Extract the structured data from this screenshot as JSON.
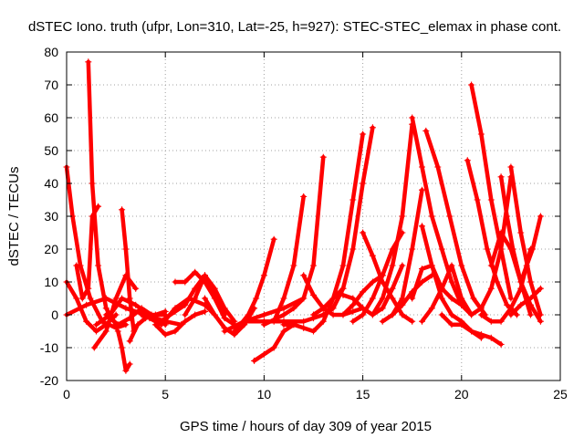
{
  "chart_data": {
    "type": "scatter",
    "title": "dSTEC Iono. truth (ufpr, Lon=310, Lat=-25, h=927): STEC-STEC_elemax in phase cont.",
    "xlabel": "GPS time / hours of day 309 of year 2015",
    "ylabel": "dSTEC  / TECUs",
    "xlim": [
      0,
      25
    ],
    "ylim": [
      -20,
      80
    ],
    "xticks": [
      0,
      5,
      10,
      15,
      20,
      25
    ],
    "xtick_labels": [
      "0",
      "5",
      "10",
      "15",
      "20",
      "25"
    ],
    "yticks": [
      -20,
      -10,
      0,
      10,
      20,
      30,
      40,
      50,
      60,
      70,
      80
    ],
    "ytick_labels": [
      "-20",
      "-10",
      "0",
      "10",
      "20",
      "30",
      "40",
      "50",
      "60",
      "70",
      "80"
    ],
    "grid": true,
    "marker": "plus",
    "color": "#ff0000",
    "series": [
      {
        "x": [
          0.0,
          0.3,
          0.7,
          1.2,
          1.8,
          2.5,
          3.0
        ],
        "y": [
          45,
          30,
          15,
          5,
          -2,
          -4,
          -3
        ]
      },
      {
        "x": [
          1.1,
          1.3,
          1.6,
          2.0,
          2.5
        ],
        "y": [
          77,
          40,
          15,
          2,
          -3
        ]
      },
      {
        "x": [
          0.5,
          0.8,
          1.1,
          1.3,
          1.6
        ],
        "y": [
          15,
          5,
          8,
          30,
          33
        ]
      },
      {
        "x": [
          0.0,
          0.5,
          1.0,
          1.5,
          2.0,
          2.5
        ],
        "y": [
          10,
          5,
          -2,
          -5,
          -3,
          0
        ]
      },
      {
        "x": [
          1.4,
          2.0,
          2.5,
          3.0,
          3.5
        ],
        "y": [
          -10,
          -5,
          5,
          12,
          8
        ]
      },
      {
        "x": [
          2.8,
          3.0,
          3.2,
          3.4
        ],
        "y": [
          32,
          20,
          5,
          -5
        ]
      },
      {
        "x": [
          2.6,
          2.8,
          3.0,
          3.2
        ],
        "y": [
          -5,
          -10,
          -17,
          -15
        ]
      },
      {
        "x": [
          3.2,
          3.6,
          4.0,
          4.5,
          5.0
        ],
        "y": [
          -8,
          -3,
          -1,
          0,
          1
        ]
      },
      {
        "x": [
          0.0,
          1.0,
          2.0,
          3.0,
          4.0,
          5.0,
          5.8
        ],
        "y": [
          0,
          3,
          5,
          2,
          0,
          -2,
          -3
        ]
      },
      {
        "x": [
          2.0,
          2.6,
          3.2,
          3.8,
          4.3,
          5.0
        ],
        "y": [
          0,
          -3,
          -1,
          2,
          0,
          -3
        ]
      },
      {
        "x": [
          1.5,
          2.2,
          2.8,
          3.5,
          4.2,
          5.0
        ],
        "y": [
          -3,
          0,
          5,
          3,
          0,
          0
        ]
      },
      {
        "x": [
          4.5,
          5.0,
          5.5,
          6.0,
          6.5,
          7.0
        ],
        "y": [
          -3,
          -6,
          -5,
          -2,
          0,
          1
        ]
      },
      {
        "x": [
          3.8,
          4.2,
          4.8,
          5.5,
          6.2,
          7.0,
          7.5
        ],
        "y": [
          0,
          -1,
          -3,
          2,
          5,
          3,
          0
        ]
      },
      {
        "x": [
          5.0,
          5.5,
          6.0,
          6.5,
          7.0,
          7.5,
          8.0
        ],
        "y": [
          -1,
          1,
          3,
          8,
          12,
          6,
          0
        ]
      },
      {
        "x": [
          5.5,
          6.0,
          6.5,
          7.0,
          7.5,
          8.0,
          8.5
        ],
        "y": [
          10,
          10,
          13,
          10,
          5,
          -1,
          -3
        ]
      },
      {
        "x": [
          6.0,
          6.5,
          7.0,
          7.5,
          8.0,
          8.5
        ],
        "y": [
          0,
          5,
          12,
          8,
          2,
          -2
        ]
      },
      {
        "x": [
          7.0,
          7.5,
          8.0,
          8.5,
          9.0,
          9.5
        ],
        "y": [
          5,
          0,
          -4,
          -6,
          -3,
          2
        ]
      },
      {
        "x": [
          8.5,
          8.8,
          9.2,
          9.6,
          10.0,
          10.5
        ],
        "y": [
          -5,
          -3,
          0,
          5,
          12,
          23
        ]
      },
      {
        "x": [
          9.5,
          10.0,
          10.5,
          11.0,
          11.5
        ],
        "y": [
          -14,
          -12,
          -10,
          -5,
          -3
        ]
      },
      {
        "x": [
          9.0,
          10.0,
          11.0,
          12.0,
          12.5,
          13.0
        ],
        "y": [
          -2,
          -2,
          -2,
          -2,
          -1,
          0
        ]
      },
      {
        "x": [
          8.0,
          9.0,
          10.0,
          11.0,
          12.0
        ],
        "y": [
          -5,
          -2,
          0,
          2,
          5
        ]
      },
      {
        "x": [
          10.5,
          11.0,
          11.5,
          12.0
        ],
        "y": [
          -2,
          5,
          15,
          36
        ]
      },
      {
        "x": [
          10.0,
          11.0,
          11.5,
          12.0,
          12.5,
          13.0
        ],
        "y": [
          -3,
          0,
          2,
          5,
          15,
          48
        ]
      },
      {
        "x": [
          11.0,
          11.5,
          12.0,
          12.5,
          13.0,
          13.5,
          14.0
        ],
        "y": [
          -3,
          -3,
          -4,
          -5,
          -2,
          5,
          8
        ]
      },
      {
        "x": [
          12.0,
          12.5,
          13.0,
          13.5,
          14.0,
          14.5,
          15.0
        ],
        "y": [
          12,
          6,
          2,
          0,
          0,
          1,
          2
        ]
      },
      {
        "x": [
          12.5,
          13.0,
          13.5,
          14.0,
          14.5,
          15.0
        ],
        "y": [
          0,
          2,
          5,
          15,
          35,
          55
        ]
      },
      {
        "x": [
          13.0,
          13.5,
          14.0,
          14.5,
          15.0,
          15.5
        ],
        "y": [
          0,
          2,
          8,
          20,
          40,
          57
        ]
      },
      {
        "x": [
          14.0,
          14.5,
          15.0,
          15.5,
          16.0
        ],
        "y": [
          0,
          3,
          7,
          10,
          12
        ]
      },
      {
        "x": [
          14.5,
          15.0,
          15.5,
          16.0,
          16.5,
          17.0
        ],
        "y": [
          -2,
          0,
          5,
          12,
          20,
          25
        ]
      },
      {
        "x": [
          14.0,
          14.5,
          15.0,
          15.5,
          16.0,
          16.5,
          17.0
        ],
        "y": [
          6,
          5,
          2,
          0,
          2,
          8,
          15
        ]
      },
      {
        "x": [
          15.0,
          15.5,
          16.0,
          16.5,
          17.0,
          17.5
        ],
        "y": [
          25,
          18,
          10,
          5,
          0,
          -2
        ]
      },
      {
        "x": [
          15.5,
          16.0,
          16.5,
          17.0,
          17.5
        ],
        "y": [
          0,
          5,
          15,
          30,
          58
        ]
      },
      {
        "x": [
          16.0,
          16.5,
          17.0,
          17.5,
          18.0
        ],
        "y": [
          -2,
          0,
          5,
          20,
          38
        ]
      },
      {
        "x": [
          16.5,
          17.0,
          17.5,
          18.0,
          18.5
        ],
        "y": [
          0,
          3,
          7,
          10,
          12
        ]
      },
      {
        "x": [
          17.5,
          18.0,
          18.5,
          19.0,
          19.5
        ],
        "y": [
          5,
          14,
          15,
          8,
          5
        ]
      },
      {
        "x": [
          17.5,
          18.0,
          18.5,
          19.0,
          19.5,
          20.0
        ],
        "y": [
          60,
          45,
          30,
          20,
          10,
          3
        ]
      },
      {
        "x": [
          18.0,
          18.5,
          19.0,
          19.5,
          20.0,
          20.5
        ],
        "y": [
          -2,
          2,
          8,
          15,
          5,
          0
        ]
      },
      {
        "x": [
          18.2,
          18.8,
          19.4,
          20.0,
          20.6,
          21.2
        ],
        "y": [
          56,
          45,
          30,
          15,
          5,
          0
        ]
      },
      {
        "x": [
          18.0,
          18.5,
          19.0,
          19.5,
          20.0,
          20.5,
          21.0
        ],
        "y": [
          27,
          15,
          5,
          0,
          -2,
          -5,
          -7
        ]
      },
      {
        "x": [
          19.0,
          19.5,
          20.0,
          20.5,
          21.0,
          21.5,
          22.0
        ],
        "y": [
          0,
          -3,
          -3,
          -5,
          -6,
          -7,
          -9
        ]
      },
      {
        "x": [
          19.5,
          20.0,
          20.5,
          21.0,
          21.5,
          22.0,
          22.5
        ],
        "y": [
          5,
          3,
          0,
          2,
          8,
          20,
          42
        ]
      },
      {
        "x": [
          20.5,
          21.0,
          21.5,
          22.0,
          22.5
        ],
        "y": [
          70,
          55,
          35,
          20,
          5
        ]
      },
      {
        "x": [
          20.3,
          20.8,
          21.3,
          21.8,
          22.3,
          22.8
        ],
        "y": [
          47,
          35,
          20,
          10,
          3,
          0
        ]
      },
      {
        "x": [
          21.0,
          21.5,
          22.0,
          22.5,
          23.0,
          23.5
        ],
        "y": [
          0,
          -2,
          -2,
          2,
          8,
          20
        ]
      },
      {
        "x": [
          21.5,
          22.0,
          22.5,
          23.0,
          23.5
        ],
        "y": [
          15,
          25,
          20,
          10,
          0
        ]
      },
      {
        "x": [
          22.0,
          22.3,
          22.6,
          23.0,
          23.5,
          24.0
        ],
        "y": [
          42,
          30,
          20,
          10,
          3,
          -2
        ]
      },
      {
        "x": [
          22.5,
          23.0,
          23.5,
          24.0
        ],
        "y": [
          45,
          25,
          10,
          0
        ]
      },
      {
        "x": [
          23.0,
          23.3,
          23.6,
          24.0
        ],
        "y": [
          10,
          15,
          20,
          30
        ]
      },
      {
        "x": [
          22.5,
          23.0,
          23.5,
          24.0
        ],
        "y": [
          0,
          3,
          5,
          8
        ]
      }
    ]
  }
}
